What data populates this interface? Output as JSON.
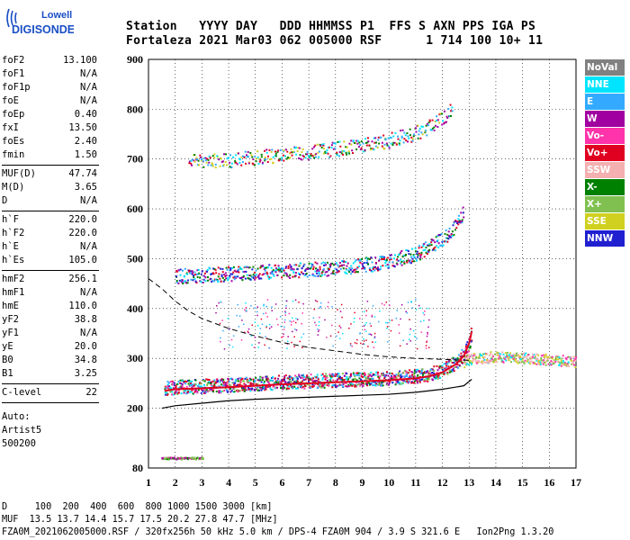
{
  "logo": {
    "line1": "Lowell",
    "line2": "DIGISONDE"
  },
  "header": {
    "row1": "Station   YYYY DAY   DDD HHMMSS P1  FFS S AXN PPS IGA PS",
    "row2": "Fortaleza 2021 Mar03 062 005000 RSF      1 714 100 10+ 11"
  },
  "params": {
    "group1": [
      [
        "foF2",
        "13.100"
      ],
      [
        "foF1",
        "N/A"
      ],
      [
        "foF1p",
        "N/A"
      ],
      [
        "foE",
        "N/A"
      ],
      [
        "foEp",
        "0.40"
      ],
      [
        "fxI",
        "13.50"
      ],
      [
        "foEs",
        "2.40"
      ],
      [
        "fmin",
        "1.50"
      ]
    ],
    "group2": [
      [
        "MUF(D)",
        "47.74"
      ],
      [
        "M(D)",
        "3.65"
      ],
      [
        "D",
        "N/A"
      ]
    ],
    "group3": [
      [
        "h`F",
        "220.0"
      ],
      [
        "h`F2",
        "220.0"
      ],
      [
        "h`E",
        "N/A"
      ],
      [
        "h`Es",
        "105.0"
      ]
    ],
    "group4": [
      [
        "hmF2",
        "256.1"
      ],
      [
        "hmF1",
        "N/A"
      ],
      [
        "hmE",
        "110.0"
      ],
      [
        "yF2",
        "38.8"
      ],
      [
        "yF1",
        "N/A"
      ],
      [
        "yE",
        "20.0"
      ],
      [
        "B0",
        "34.8"
      ],
      [
        "B1",
        "3.25"
      ]
    ],
    "group5": [
      [
        "C-level",
        "22"
      ]
    ],
    "auto": [
      "Auto:",
      "Artist5",
      "500200"
    ]
  },
  "legend": [
    {
      "label": "NoVal",
      "color": "#808080"
    },
    {
      "label": "NNE",
      "color": "#00e5ff"
    },
    {
      "label": "E",
      "color": "#33aaff"
    },
    {
      "label": "W",
      "color": "#a000a0"
    },
    {
      "label": "Vo-",
      "color": "#ff33aa"
    },
    {
      "label": "Vo+",
      "color": "#e00020"
    },
    {
      "label": "SSW",
      "color": "#f4b0b0"
    },
    {
      "label": "X-",
      "color": "#008000"
    },
    {
      "label": "X+",
      "color": "#80c050"
    },
    {
      "label": "SSE",
      "color": "#d0d020"
    },
    {
      "label": "NNW",
      "color": "#2020d0"
    }
  ],
  "footer": {
    "line1": "D     100  200  400  600  800 1000 1500 3000 [km]",
    "line2": "MUF  13.5 13.7 14.4 15.7 17.5 20.2 27.8 47.7 [MHz]",
    "line3": "FZA0M_2021062005000.RSF / 320fx256h 50 kHz 5.0 km / DPS-4 FZA0M 904 / 3.9 S 321.6 E   Ion2Png 1.3.20"
  },
  "chart_data": {
    "type": "scatter",
    "xlim": [
      1,
      17
    ],
    "ylim": [
      80,
      900
    ],
    "xticks": [
      1,
      2,
      3,
      4,
      5,
      6,
      7,
      8,
      9,
      10,
      11,
      12,
      13,
      14,
      15,
      16,
      17
    ],
    "yticks": [
      80,
      200,
      300,
      400,
      500,
      600,
      700,
      800,
      900
    ],
    "grid": true,
    "series": [
      {
        "name": "O-trace",
        "color": "#e00020",
        "x": [
          1.6,
          2,
          3,
          4,
          5,
          6,
          7,
          8,
          9,
          10,
          11,
          11.5,
          12,
          12.5,
          12.8,
          13.0,
          13.1
        ],
        "y": [
          235,
          238,
          240,
          242,
          245,
          248,
          250,
          252,
          254,
          256,
          260,
          264,
          272,
          288,
          305,
          330,
          355
        ]
      },
      {
        "name": "X-trace",
        "color": "#008000",
        "x": [
          12.8,
          13,
          13.5,
          14,
          14.5,
          15,
          15.5,
          16,
          16.5,
          17
        ],
        "y": [
          290,
          295,
          298,
          300,
          300,
          298,
          296,
          294,
          292,
          290
        ]
      },
      {
        "name": "2-hop",
        "color": "#e00020",
        "x": [
          2,
          3,
          4,
          5,
          6,
          7,
          8,
          9,
          10,
          11,
          11.5,
          12,
          12.5,
          12.8
        ],
        "y": [
          460,
          462,
          465,
          468,
          470,
          473,
          477,
          482,
          490,
          505,
          518,
          535,
          560,
          595
        ]
      },
      {
        "name": "3-hop",
        "color": "#e00020",
        "x": [
          2.5,
          3,
          4,
          5,
          6,
          7,
          8,
          9,
          10,
          11,
          11.5,
          12,
          12.4
        ],
        "y": [
          690,
          690,
          693,
          698,
          703,
          708,
          715,
          722,
          733,
          748,
          760,
          775,
          800
        ]
      },
      {
        "name": "Es",
        "color": "#a000a0",
        "x": [
          1.5,
          2,
          2.5,
          3
        ],
        "y": [
          100,
          100,
          100,
          100
        ]
      },
      {
        "name": "profile",
        "color": "#000000",
        "x": [
          1.5,
          2,
          3,
          4,
          5,
          6,
          7,
          8,
          9,
          10,
          11,
          12,
          12.8,
          13.1
        ],
        "y": [
          200,
          205,
          210,
          215,
          218,
          220,
          222,
          224,
          226,
          228,
          232,
          238,
          245,
          258
        ]
      },
      {
        "name": "extrapolation",
        "color": "#000000",
        "x": [
          1,
          1.5,
          2,
          2.5,
          3,
          4,
          5,
          6,
          7,
          8,
          9,
          10,
          11,
          12,
          13
        ],
        "y": [
          460,
          440,
          415,
          395,
          380,
          360,
          345,
          332,
          322,
          315,
          308,
          303,
          300,
          298,
          296
        ]
      }
    ]
  }
}
